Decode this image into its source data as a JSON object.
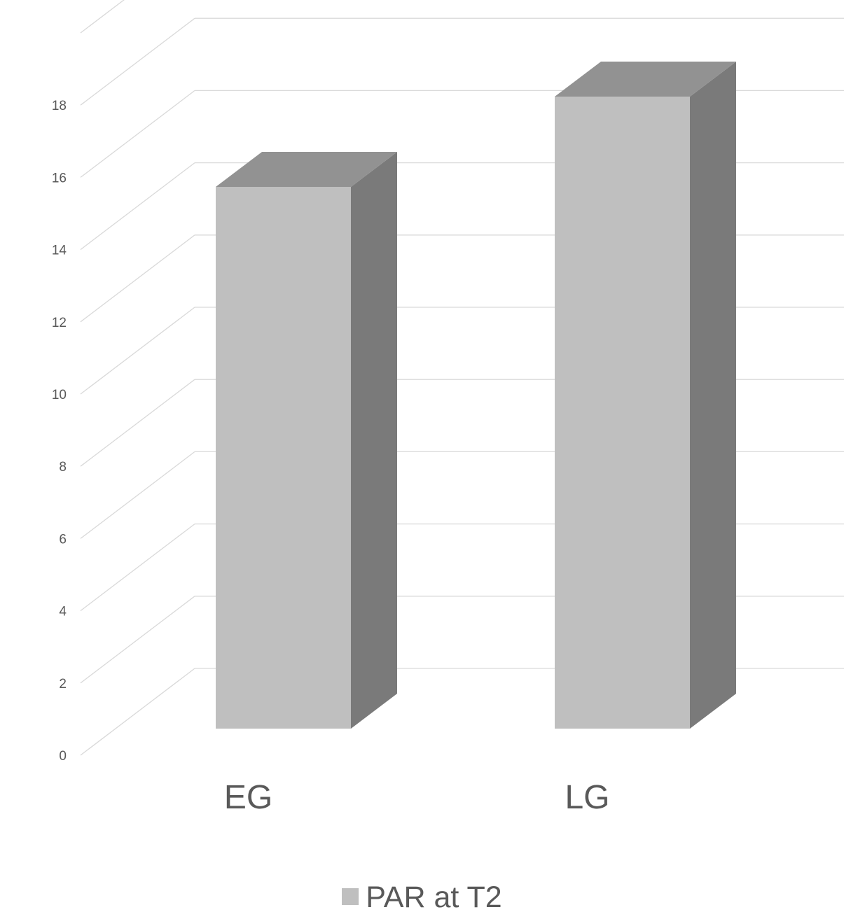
{
  "chart_data": {
    "type": "bar",
    "style": "3d-column",
    "categories": [
      "EG",
      "LG"
    ],
    "series": [
      {
        "name": "PAR at T2",
        "values": [
          15,
          17.5
        ]
      }
    ],
    "ylim": [
      0,
      20
    ],
    "yticks": [
      0,
      2,
      4,
      6,
      8,
      10,
      12,
      14,
      16,
      18
    ],
    "grid": true,
    "legend_position": "bottom",
    "colors": {
      "front": "#bfbfbf",
      "top": "#929292",
      "side": "#7a7a7a",
      "grid": "#d9d9d9",
      "text": "#595959"
    }
  }
}
